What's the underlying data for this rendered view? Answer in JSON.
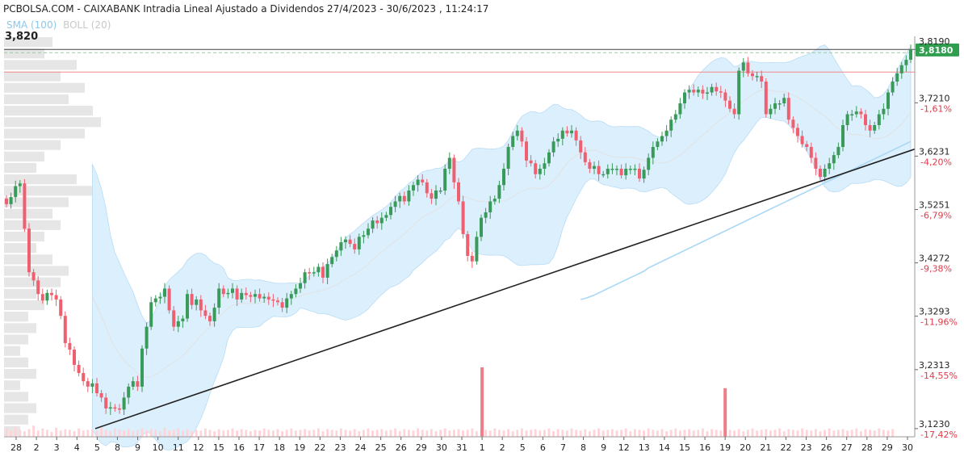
{
  "header": {
    "title": "PCBOLSA.COM - CAIXABANK Intradia Lineal Ajustado a Dividendos 27/4/2023 - 30/6/2023 , 11:24:17",
    "indicator_sma": "SMA (100)",
    "indicator_boll": "BOLL (20)",
    "last_price_left": "3,820"
  },
  "chart_data": {
    "type": "candlestick",
    "y_ticks": [
      {
        "value": 3.819,
        "price": "3,8190",
        "pct": ""
      },
      {
        "value": 3.721,
        "price": "3,7210",
        "pct": "-1,61%"
      },
      {
        "value": 3.6231,
        "price": "3,6231",
        "pct": "-4,20%"
      },
      {
        "value": 3.5251,
        "price": "3,5251",
        "pct": "-6,79%"
      },
      {
        "value": 3.4272,
        "price": "3,4272",
        "pct": "-9,38%"
      },
      {
        "value": 3.3293,
        "price": "3,3293",
        "pct": "-11,96%"
      },
      {
        "value": 3.2313,
        "price": "3,2313",
        "pct": "-14,55%"
      },
      {
        "value": 3.123,
        "price": "3,1230",
        "pct": "-17,42%"
      }
    ],
    "ylim": [
      3.108,
      3.843
    ],
    "last_price": {
      "value": 3.818,
      "label": "3,8180"
    },
    "reference_line": 3.7775,
    "x_labels": [
      "28",
      "2",
      "3",
      "4",
      "5",
      "8",
      "9",
      "10",
      "11",
      "12",
      "15",
      "16",
      "17",
      "18",
      "19",
      "22",
      "23",
      "24",
      "25",
      "26",
      "29",
      "30",
      "31",
      "1",
      "2",
      "5",
      "6",
      "7",
      "8",
      "9",
      "12",
      "13",
      "14",
      "15",
      "16",
      "19",
      "20",
      "21",
      "22",
      "23",
      "26",
      "27",
      "28",
      "29",
      "30"
    ],
    "closes": [
      3.535,
      3.548,
      3.568,
      3.573,
      3.49,
      3.41,
      3.395,
      3.37,
      3.358,
      3.372,
      3.368,
      3.36,
      3.33,
      3.28,
      3.268,
      3.24,
      3.225,
      3.21,
      3.2,
      3.206,
      3.188,
      3.18,
      3.16,
      3.162,
      3.16,
      3.158,
      3.18,
      3.2,
      3.21,
      3.2,
      3.27,
      3.31,
      3.355,
      3.362,
      3.365,
      3.38,
      3.34,
      3.31,
      3.32,
      3.325,
      3.37,
      3.35,
      3.36,
      3.34,
      3.33,
      3.32,
      3.345,
      3.38,
      3.37,
      3.372,
      3.38,
      3.36,
      3.372,
      3.368,
      3.365,
      3.37,
      3.362,
      3.365,
      3.36,
      3.358,
      3.355,
      3.345,
      3.362,
      3.37,
      3.38,
      3.39,
      3.41,
      3.408,
      3.41,
      3.42,
      3.4,
      3.425,
      3.438,
      3.45,
      3.465,
      3.47,
      3.462,
      3.452,
      3.475,
      3.478,
      3.49,
      3.505,
      3.5,
      3.51,
      3.515,
      3.53,
      3.54,
      3.55,
      3.54,
      3.56,
      3.57,
      3.58,
      3.575,
      3.555,
      3.545,
      3.56,
      3.56,
      3.6,
      3.62,
      3.575,
      3.54,
      3.48,
      3.44,
      3.43,
      3.475,
      3.51,
      3.52,
      3.54,
      3.545,
      3.57,
      3.6,
      3.64,
      3.66,
      3.67,
      3.65,
      3.615,
      3.61,
      3.59,
      3.6,
      3.61,
      3.63,
      3.65,
      3.655,
      3.67,
      3.665,
      3.67,
      3.652,
      3.63,
      3.612,
      3.6,
      3.605,
      3.59,
      3.59,
      3.6,
      3.6,
      3.6,
      3.588,
      3.6,
      3.6,
      3.6,
      3.582,
      3.598,
      3.62,
      3.64,
      3.65,
      3.66,
      3.67,
      3.69,
      3.7,
      3.72,
      3.74,
      3.745,
      3.74,
      3.745,
      3.738,
      3.74,
      3.75,
      3.742,
      3.74,
      3.725,
      3.71,
      3.7,
      3.78,
      3.795,
      3.775,
      3.77,
      3.77,
      3.76,
      3.7,
      3.71,
      3.72,
      3.72,
      3.73,
      3.69,
      3.675,
      3.66,
      3.645,
      3.64,
      3.62,
      3.6,
      3.585,
      3.6,
      3.61,
      3.625,
      3.64,
      3.68,
      3.7,
      3.7,
      3.705,
      3.7,
      3.68,
      3.67,
      3.68,
      3.7,
      3.71,
      3.74,
      3.76,
      3.775,
      3.79,
      3.8,
      3.818
    ],
    "sma100_closes": [
      3.36,
      3.362,
      3.365,
      3.368,
      3.372,
      3.376,
      3.38,
      3.384,
      3.388,
      3.392,
      3.396,
      3.4,
      3.404,
      3.408,
      3.412,
      3.418,
      3.422,
      3.426,
      3.43,
      3.434,
      3.438,
      3.442,
      3.446,
      3.45,
      3.454,
      3.458,
      3.462,
      3.466,
      3.47,
      3.474,
      3.478,
      3.482,
      3.486,
      3.49,
      3.494,
      3.498,
      3.502,
      3.506,
      3.51,
      3.514,
      3.518,
      3.522,
      3.526,
      3.53,
      3.534,
      3.538,
      3.542,
      3.546,
      3.55,
      3.554,
      3.558,
      3.562,
      3.566,
      3.57,
      3.574,
      3.578,
      3.582,
      3.586,
      3.59,
      3.594,
      3.598,
      3.602,
      3.606,
      3.61,
      3.614,
      3.618,
      3.622,
      3.626,
      3.63,
      3.634,
      3.638,
      3.642,
      3.646,
      3.65
    ],
    "volume": [
      1.2,
      0.9,
      1.4,
      1.0,
      0.8,
      1.1,
      1.6,
      0.9,
      1.2,
      1.0,
      0.7,
      1.3,
      0.9,
      1.1,
      1.0,
      0.8,
      1.2,
      0.9,
      1.0,
      1.1,
      0.9,
      1.3,
      1.0,
      0.8,
      1.2,
      1.0,
      0.9,
      1.1,
      0.8,
      1.0,
      1.2,
      0.9,
      1.1,
      1.0,
      0.8,
      1.3,
      0.9,
      1.0,
      1.2,
      0.9,
      1.1,
      0.8,
      1.0,
      0.9,
      1.2,
      1.0,
      0.8,
      1.1,
      0.9,
      1.0,
      1.2,
      0.9,
      1.1,
      1.0,
      0.8,
      1.0,
      0.9,
      1.2,
      1.0,
      0.9,
      1.1,
      0.8,
      1.0,
      1.2,
      0.9,
      1.0,
      1.1,
      0.9,
      1.0,
      1.2,
      0.8,
      1.1,
      1.0,
      0.9,
      1.2,
      1.0,
      0.9,
      1.1,
      0.8,
      1.0,
      1.2,
      0.9,
      1.0,
      1.1,
      0.9,
      1.0,
      1.2,
      0.8,
      1.1,
      1.0,
      0.9,
      1.2,
      1.0,
      0.9,
      1.1,
      0.8,
      1.0,
      1.2,
      0.9,
      1.0,
      1.1,
      0.9,
      1.0,
      1.2,
      0.8,
      1.1,
      1.0,
      0.9,
      1.2,
      1.0,
      0.9,
      1.1,
      0.8,
      1.0,
      1.2,
      0.9,
      1.0,
      1.1,
      0.9,
      1.0,
      1.2,
      0.8,
      1.1,
      1.0,
      0.9,
      1.2,
      1.0,
      0.9,
      1.1,
      0.8,
      1.0,
      1.2,
      0.9,
      1.0,
      1.1,
      0.9,
      1.0,
      1.2,
      0.8,
      1.1,
      1.0,
      0.9,
      1.2,
      1.0,
      0.9,
      1.1,
      0.8,
      1.0,
      1.2,
      0.9,
      1.0,
      1.1,
      0.9,
      1.0,
      1.2,
      0.8,
      1.1,
      1.0,
      0.9,
      1.2,
      1.0,
      0.9,
      1.1,
      0.8,
      1.0,
      1.2,
      0.9,
      1.0,
      1.1,
      0.9,
      1.0,
      1.2,
      0.8,
      1.1,
      1.0,
      0.9,
      1.2,
      1.0,
      0.9,
      1.1,
      0.8,
      1.0,
      1.2,
      0.9,
      1.0,
      1.1,
      0.9,
      1.0,
      1.2,
      0.8,
      1.1,
      1.0,
      0.9,
      1.2,
      1.0,
      0.9,
      1.1
    ],
    "volume_spikes": [
      {
        "label": "1",
        "value": 10
      },
      {
        "label": "19",
        "value": 7
      }
    ],
    "volume_profile": [
      0.6,
      0.5,
      0.9,
      0.7,
      1.0,
      0.8,
      1.1,
      1.2,
      1.0,
      0.7,
      0.5,
      0.4,
      0.9,
      1.1,
      0.8,
      0.6,
      0.7,
      0.5,
      0.4,
      0.6,
      0.8,
      0.7,
      0.4,
      0.5,
      0.3,
      0.4,
      0.3,
      0.2,
      0.3,
      0.4,
      0.2,
      0.3,
      0.4,
      0.3,
      0.2
    ],
    "colors": {
      "up": "#3a9a5a",
      "down": "#ee6070",
      "band": "#dceffc",
      "band_edge": "#b9dcf5",
      "sma": "#a9d8f6",
      "boll_mid": "#e2e2e2",
      "trendline": "#222222",
      "reference": "#f08a8a",
      "last_box": "#2f9e4f",
      "profile": "#e6e6e6"
    }
  }
}
